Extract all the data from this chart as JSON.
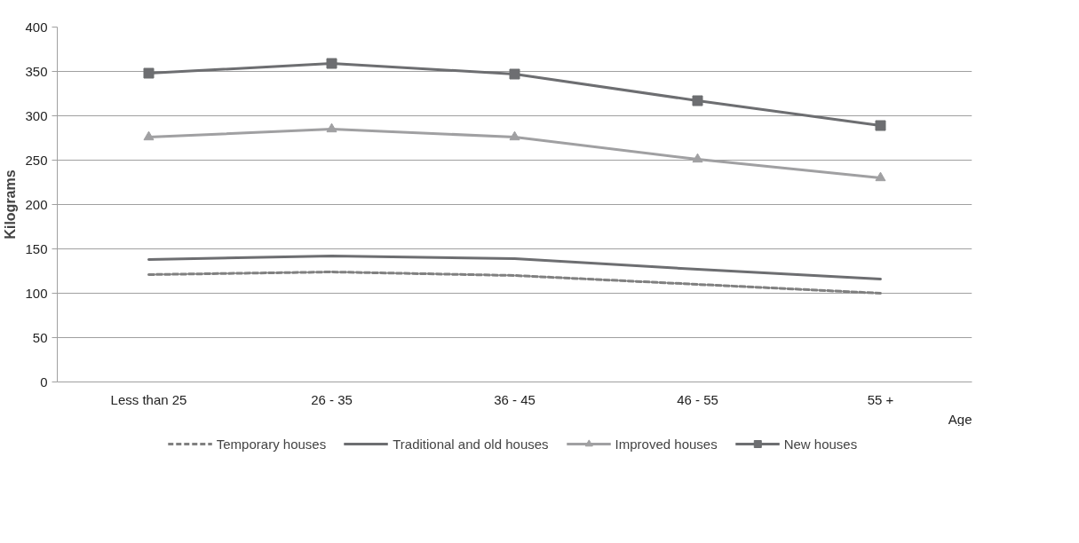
{
  "chart_data": {
    "type": "line",
    "xlabel": "Age",
    "ylabel": "Kilograms",
    "categories": [
      "Less than 25",
      "26 - 35",
      "36 - 45",
      "46 - 55",
      "55 +"
    ],
    "ylim": [
      0,
      400
    ],
    "yticks": [
      0,
      50,
      100,
      150,
      200,
      250,
      300,
      350,
      400
    ],
    "grid": "y",
    "legend": "bottom",
    "series": [
      {
        "name": "Temporary houses",
        "color": "#808080",
        "line_style": "dashed",
        "marker": "none",
        "values": [
          121,
          124,
          120,
          110,
          100
        ]
      },
      {
        "name": "Traditional and old houses",
        "color": "#6d6e71",
        "line_style": "solid",
        "marker": "none",
        "values": [
          138,
          142,
          139,
          127,
          116
        ]
      },
      {
        "name": "Improved houses",
        "color": "#a0a0a2",
        "line_style": "solid",
        "marker": "triangle",
        "values": [
          276,
          285,
          276,
          251,
          230
        ]
      },
      {
        "name": "New houses",
        "color": "#6d6e71",
        "line_style": "solid",
        "marker": "square",
        "values": [
          348,
          359,
          347,
          317,
          289
        ]
      }
    ]
  }
}
